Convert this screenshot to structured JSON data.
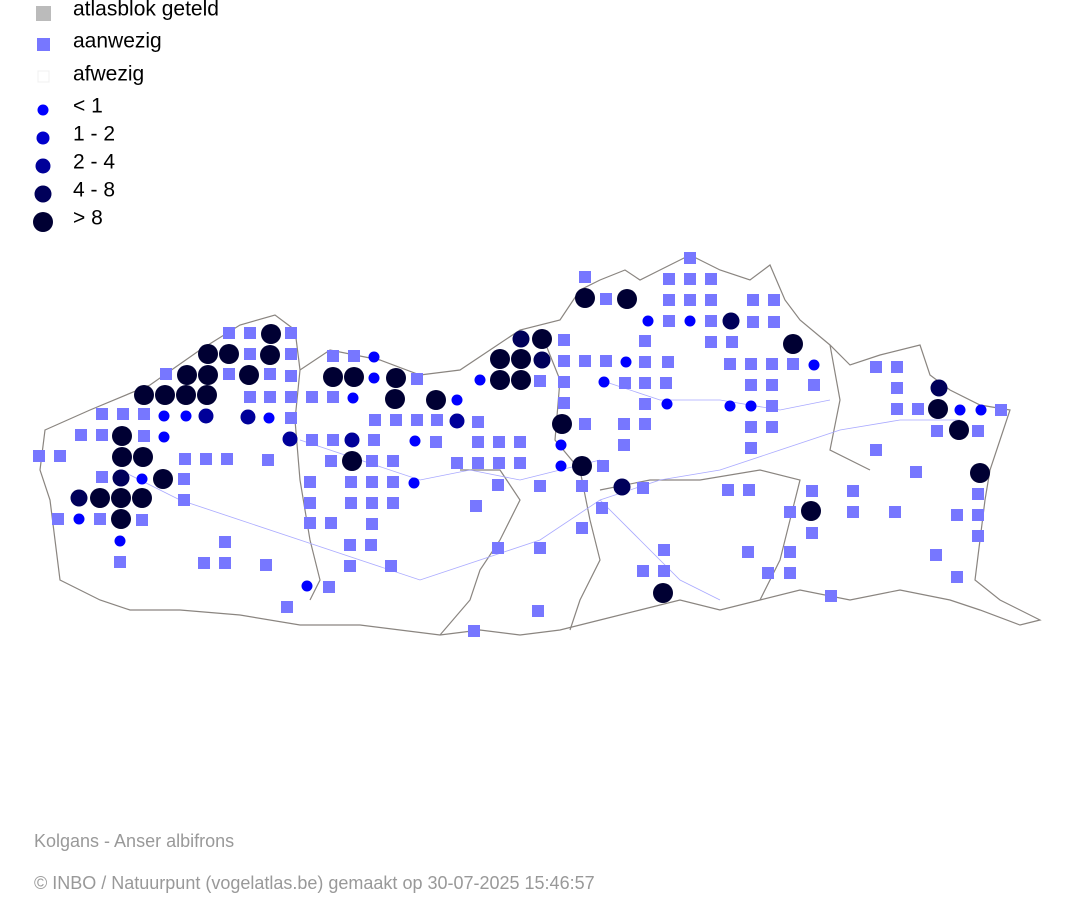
{
  "legend": [
    {
      "label": "atlasblok geteld"
    },
    {
      "label": "aanwezig"
    },
    {
      "label": "afwezig"
    },
    {
      "label": "< 1"
    },
    {
      "label": "1 - 2"
    },
    {
      "label": "2 - 4"
    },
    {
      "label": "4 - 8"
    },
    {
      "label": "> 8"
    }
  ],
  "footer": {
    "species": "Kolgans - Anser albifrons",
    "credit": "© INBO / Natuurpunt (vogelatlas.be) gemaakt op 30-07-2025 15:46:57"
  }
}
